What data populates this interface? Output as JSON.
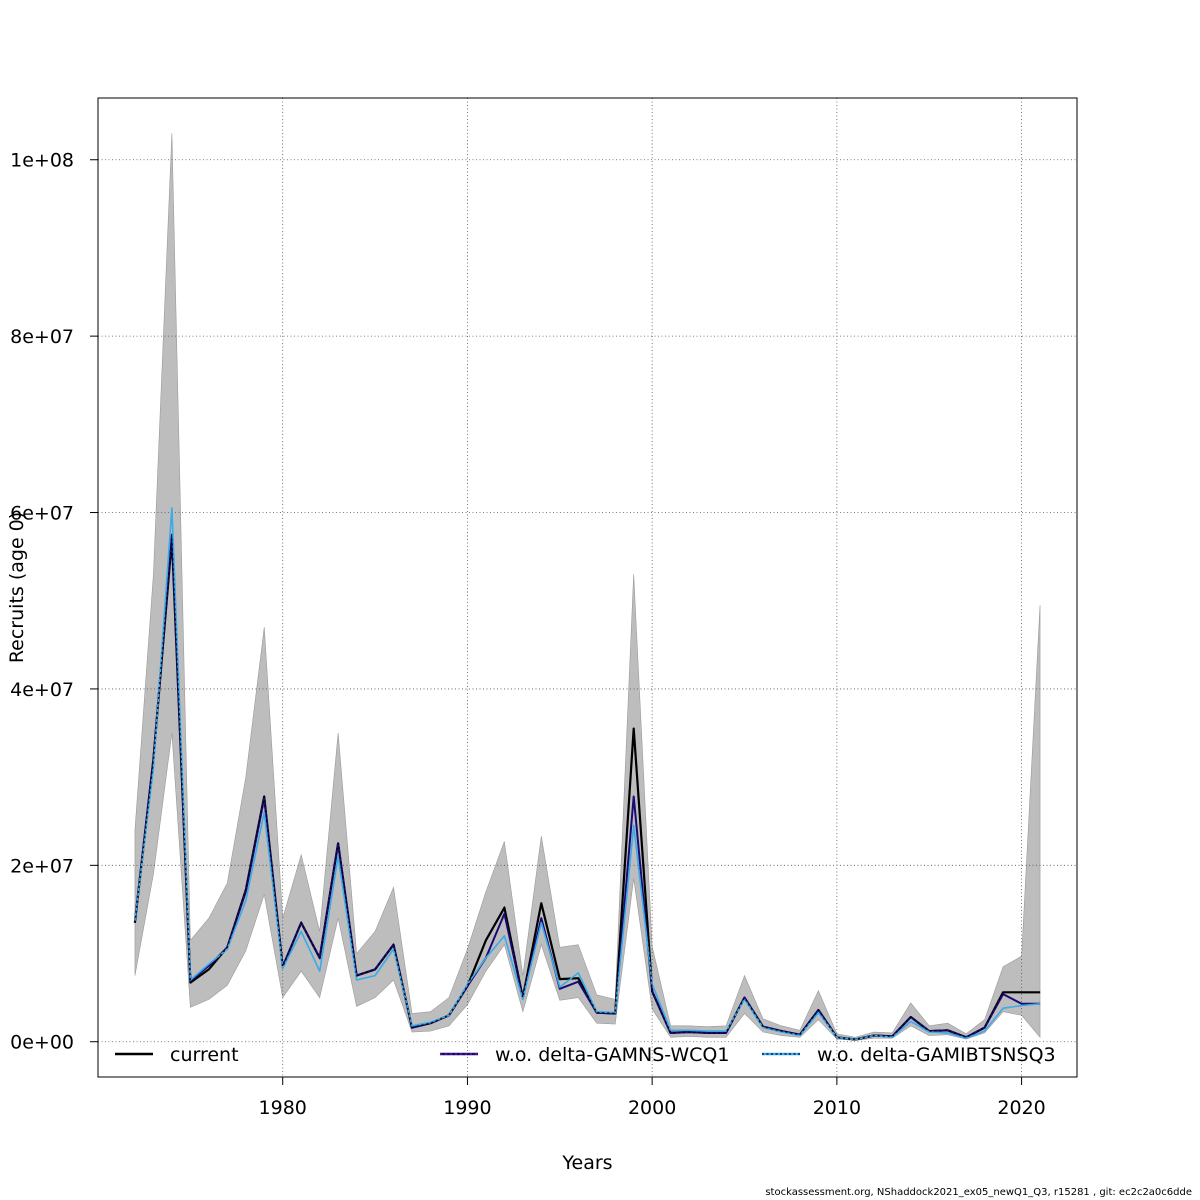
{
  "chart_data": {
    "type": "line",
    "xlabel": "Years",
    "ylabel": "Recruits (age 0)",
    "xlim": [
      1970,
      2023
    ],
    "ylim": [
      -4000000.0,
      107000000.0
    ],
    "x_ticks": [
      1980,
      1990,
      2000,
      2010,
      2020
    ],
    "x_tick_labels": [
      "1980",
      "1990",
      "2000",
      "2010",
      "2020"
    ],
    "y_ticks": [
      0,
      20000000,
      40000000,
      60000000,
      80000000,
      100000000
    ],
    "y_tick_labels": [
      "0e+00",
      "2e+07",
      "4e+07",
      "6e+07",
      "8e+07",
      "1e+08"
    ],
    "grid": true,
    "legend_position": "bottom",
    "x": [
      1972,
      1973,
      1974,
      1975,
      1976,
      1977,
      1978,
      1979,
      1980,
      1981,
      1982,
      1983,
      1984,
      1985,
      1986,
      1987,
      1988,
      1989,
      1990,
      1991,
      1992,
      1993,
      1994,
      1995,
      1996,
      1997,
      1998,
      1999,
      2000,
      2001,
      2002,
      2003,
      2004,
      2005,
      2006,
      2007,
      2008,
      2009,
      2010,
      2011,
      2012,
      2013,
      2014,
      2015,
      2016,
      2017,
      2018,
      2019,
      2020,
      2021
    ],
    "confidence_band": {
      "upper": [
        24000000,
        53000000,
        103000000,
        11500000,
        14000000,
        18000000,
        30000000,
        47000000,
        14000000,
        21200000,
        12500000,
        35000000,
        10000000,
        12500000,
        17500000,
        3200000,
        3400000,
        5000000,
        10500000,
        17000000,
        22700000,
        7500000,
        23300000,
        10700000,
        11000000,
        5300000,
        4800000,
        53000000,
        10800000,
        1800000,
        1800000,
        1700000,
        1800000,
        7500000,
        2600000,
        1800000,
        1300000,
        5800000,
        900000,
        500000,
        1100000,
        1000000,
        4400000,
        1800000,
        2100000,
        900000,
        2500000,
        8500000,
        9700000,
        49500000
      ],
      "lower": [
        7500000,
        19000000,
        35000000,
        3900000,
        4800000,
        6400000,
        10300000,
        16700000,
        5000000,
        8000000,
        5000000,
        14000000,
        4000000,
        5000000,
        7000000,
        1100000,
        1200000,
        1800000,
        4200000,
        8000000,
        11000000,
        3400000,
        11000000,
        4700000,
        5000000,
        2100000,
        2000000,
        18500000,
        3700000,
        500000,
        600000,
        500000,
        500000,
        3200000,
        1100000,
        700000,
        500000,
        2500000,
        300000,
        150000,
        400000,
        400000,
        1800000,
        700000,
        800000,
        300000,
        1000000,
        3400000,
        3000000,
        500000
      ]
    },
    "series": [
      {
        "name": "current",
        "color": "#000000",
        "values": [
          13500000,
          32000000,
          57000000,
          6700000,
          8200000,
          10700000,
          17200000,
          27800000,
          8500000,
          13500000,
          9500000,
          22500000,
          7500000,
          8200000,
          11000000,
          1600000,
          2100000,
          3000000,
          6300000,
          11500000,
          15200000,
          5000000,
          15700000,
          7100000,
          7200000,
          3300000,
          3200000,
          35500000,
          5700000,
          1000000,
          1100000,
          1000000,
          1000000,
          5000000,
          1700000,
          1200000,
          800000,
          3600000,
          500000,
          250000,
          700000,
          600000,
          2800000,
          1200000,
          1300000,
          500000,
          1600000,
          5600000,
          5600000,
          5600000
        ]
      },
      {
        "name": "w.o. delta-GAMNS-WCQ1",
        "color": "#1a0a78",
        "values": [
          13700000,
          32000000,
          57500000,
          6900000,
          8600000,
          10700000,
          17000000,
          27600000,
          8500000,
          13500000,
          9500000,
          22500000,
          7500000,
          8200000,
          11000000,
          1600000,
          2100000,
          3000000,
          6300000,
          9500000,
          14500000,
          5000000,
          14000000,
          6000000,
          6800000,
          3300000,
          3200000,
          27800000,
          5700000,
          1000000,
          1100000,
          1000000,
          1000000,
          5000000,
          1700000,
          1200000,
          800000,
          3600000,
          500000,
          250000,
          700000,
          600000,
          2800000,
          1200000,
          1300000,
          500000,
          1600000,
          5400000,
          4300000,
          4300000
        ]
      },
      {
        "name": "w.o. delta-GAMIBTSNSQ3",
        "color": "#3aaae8",
        "values": [
          13700000,
          31000000,
          60500000,
          7000000,
          8800000,
          10500000,
          16000000,
          26000000,
          8300000,
          12500000,
          8000000,
          21000000,
          7000000,
          7500000,
          10500000,
          1800000,
          2200000,
          3000000,
          6500000,
          9500000,
          12000000,
          4800000,
          13500000,
          6200000,
          7800000,
          3400000,
          3300000,
          24500000,
          6500000,
          1300000,
          1300000,
          1200000,
          1200000,
          4800000,
          1600000,
          1100000,
          700000,
          3300000,
          500000,
          250000,
          700000,
          500000,
          2300000,
          1100000,
          1000000,
          400000,
          1200000,
          3800000,
          4100000,
          4300000
        ]
      }
    ]
  },
  "legend": {
    "items": [
      {
        "label": "current"
      },
      {
        "label": "w.o. delta-GAMNS-WCQ1"
      },
      {
        "label": "w.o. delta-GAMIBTSNSQ3"
      }
    ]
  },
  "footer": "stockassessment.org, NShaddock2021_ex05_newQ1_Q3, r15281 , git: ec2c2a0c6dde"
}
